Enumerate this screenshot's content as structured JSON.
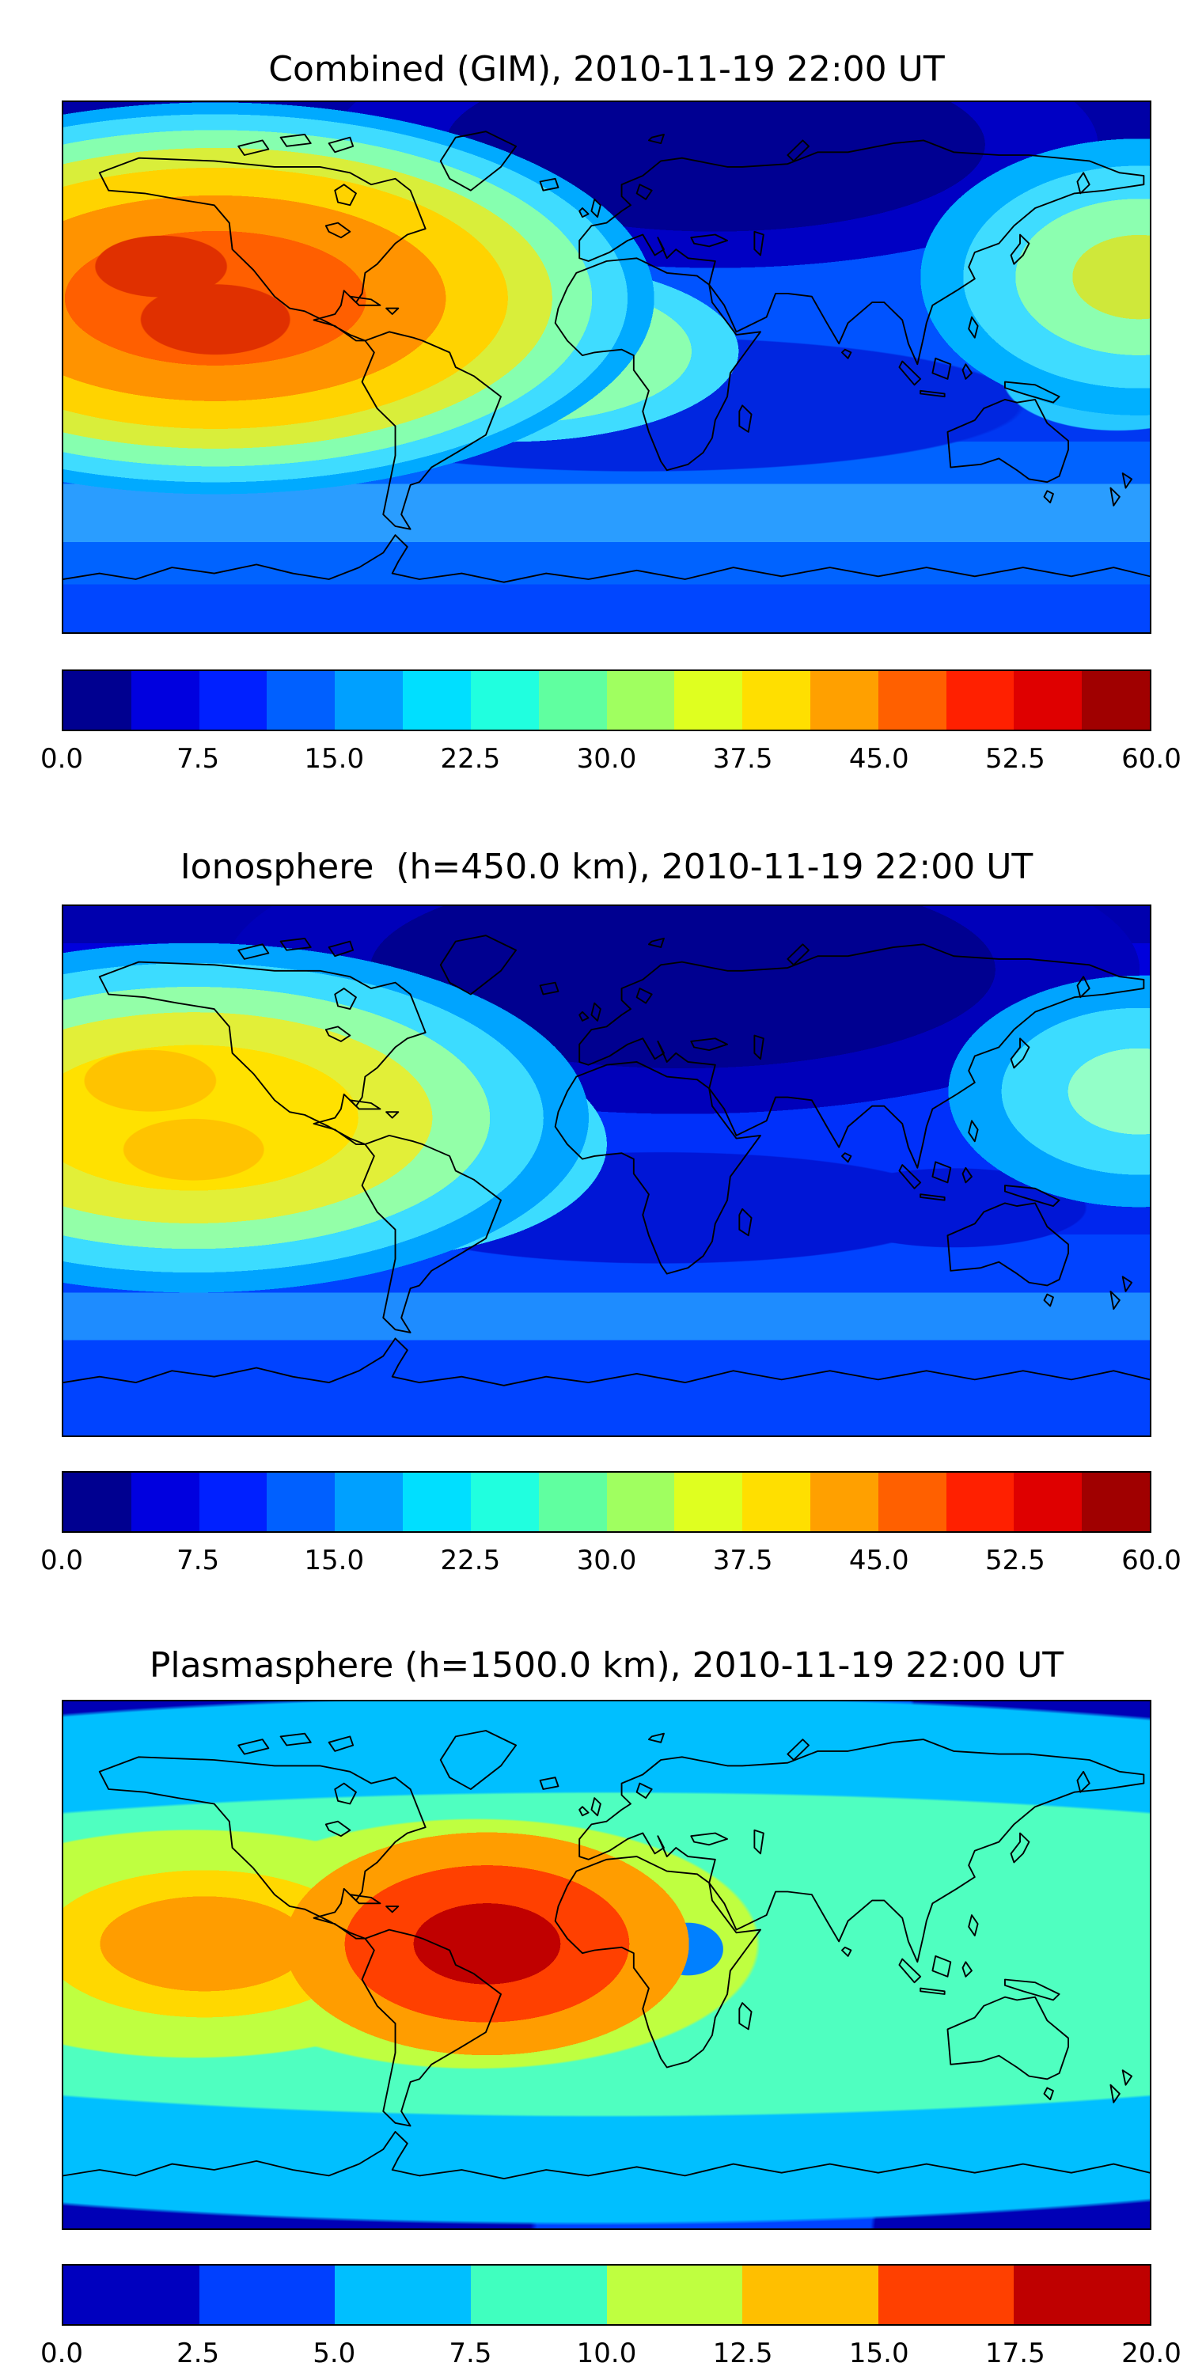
{
  "figure": {
    "background": "#ffffff",
    "frame_color": "#000000"
  },
  "colors": {
    "jet16": [
      "#000090",
      "#0000df",
      "#0020ff",
      "#0060ff",
      "#00a0ff",
      "#00dfff",
      "#20ffdf",
      "#60ffa0",
      "#a0ff60",
      "#dfff20",
      "#ffdf00",
      "#ffa000",
      "#ff6000",
      "#ff2000",
      "#df0000",
      "#a00000"
    ],
    "jet8": [
      "#0000bf",
      "#0040ff",
      "#00bfff",
      "#40ffbf",
      "#bfff40",
      "#ffbf00",
      "#ff4000",
      "#bf0000"
    ]
  },
  "chart_data": [
    {
      "type": "heatmap",
      "title": "Combined (GIM), 2010-11-19 22:00 UT",
      "colormap": "jet, 16 discrete contour levels",
      "projection": "equirectangular world map, lon -180..180, lat -90..90",
      "value_range": [
        0.0,
        60.0
      ],
      "colorbar_ticks": [
        0.0,
        7.5,
        15.0,
        22.5,
        30.0,
        37.5,
        45.0,
        52.5,
        60.0
      ],
      "colorbar_labels": [
        "0.0",
        "7.5",
        "15.0",
        "22.5",
        "30.0",
        "37.5",
        "45.0",
        "52.5",
        "60.0"
      ],
      "features": [
        {
          "region": "eastern Pacific / western South America, ~5S-25S",
          "description": "strong equatorial anomaly maximum, orange with red cores",
          "approx_peak_value": 55
        },
        {
          "region": "tongue extending east over northern South America into Atlantic",
          "description": "yellow to yellow-green enhancement",
          "approx_value": 32
        },
        {
          "region": "far western Pacific at right map edge, ~25S",
          "description": "yellow-green secondary maximum",
          "approx_value": 33
        },
        {
          "region": "high northern latitudes over Eurasia",
          "description": "deep navy minimum",
          "approx_value": 4
        },
        {
          "region": "southern mid-latitude band across Atlantic and Indian Ocean",
          "description": "dark blue low band",
          "approx_value": 8
        },
        {
          "region": "southern Pacific band ~55S",
          "description": "light blue enhancement band",
          "approx_value": 15
        }
      ]
    },
    {
      "type": "heatmap",
      "title": "Ionosphere  (h=450.0 km), 2010-11-19 22:00 UT",
      "colormap": "jet, 16 discrete contour levels",
      "projection": "equirectangular world map, lon -180..180, lat -90..90",
      "value_range": [
        0.0,
        60.0
      ],
      "colorbar_ticks": [
        0.0,
        7.5,
        15.0,
        22.5,
        30.0,
        37.5,
        45.0,
        52.5,
        60.0
      ],
      "colorbar_labels": [
        "0.0",
        "7.5",
        "15.0",
        "22.5",
        "30.0",
        "37.5",
        "45.0",
        "52.5",
        "60.0"
      ],
      "features": [
        {
          "region": "eastern Pacific west of South America, ~5S-25S",
          "description": "yellow maximum with faint orange cores",
          "approx_peak_value": 37
        },
        {
          "region": "extension over Peru / western Brazil",
          "description": "yellow-green enhancement",
          "approx_value": 28
        },
        {
          "region": "far western Pacific at right map edge, ~25S",
          "description": "pale green-cyan secondary maximum",
          "approx_value": 25
        },
        {
          "region": "broad high-latitude region over Europe and Asia",
          "description": "very dark navy minimum",
          "approx_value": 3
        },
        {
          "region": "southern mid-latitude band",
          "description": "dark blue low band",
          "approx_value": 6
        }
      ]
    },
    {
      "type": "heatmap",
      "title": "Plasmasphere (h=1500.0 km), 2010-11-19 22:00 UT",
      "colormap": "jet, 8 discrete contour levels",
      "projection": "equirectangular world map, lon -180..180, lat -90..90",
      "value_range": [
        0.0,
        20.0
      ],
      "colorbar_ticks": [
        0.0,
        2.5,
        5.0,
        7.5,
        10.0,
        12.5,
        15.0,
        17.5,
        20.0
      ],
      "colorbar_labels": [
        "0.0",
        "2.5",
        "5.0",
        "7.5",
        "10.0",
        "12.5",
        "15.0",
        "17.5",
        "20.0"
      ],
      "features": [
        {
          "region": "over Brazil / central South America",
          "description": "dark red core with orange ring",
          "approx_peak_value": 19
        },
        {
          "region": "central-east Pacific ~15S",
          "description": "orange maximum with yellow ring",
          "approx_value": 15
        },
        {
          "region": "equatorial band across entire map, ~30S-30N",
          "description": "cyan to aqua-green plasmaspheric band",
          "approx_value": 8
        },
        {
          "region": "small spot over central Africa",
          "description": "local blue depression inside green band",
          "approx_value": 5
        },
        {
          "region": "high-latitude corners (NW, NE, SW, SE)",
          "description": "dark navy minimum",
          "approx_value": 1
        }
      ]
    }
  ]
}
